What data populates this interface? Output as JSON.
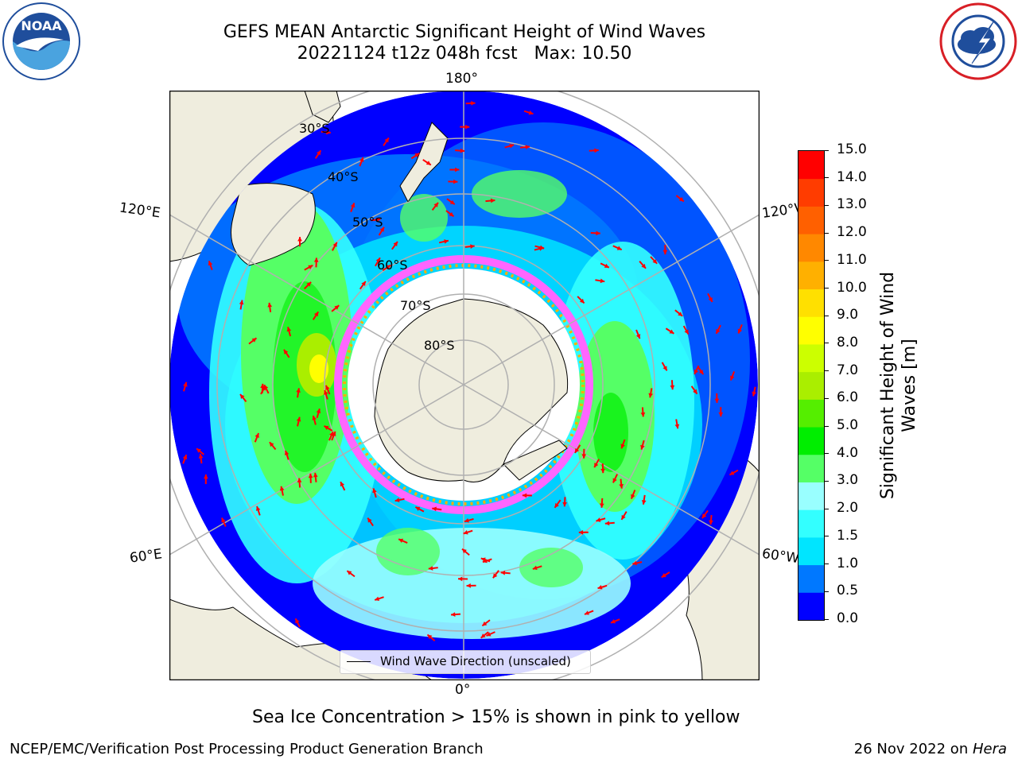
{
  "header": {
    "title_line1": "GEFS MEAN Antarctic Significant Height of Wind Waves",
    "title_line2": "20221124 t12z 048h fcst   Max: 10.50"
  },
  "logos": {
    "noaa": {
      "text": "NOAA",
      "ring_text": "NATIONAL OCEANIC AND ATMOSPHERIC ADMINISTRATION · U.S. DEPARTMENT OF COMMERCE",
      "color": "#1f4e9c"
    },
    "nws": {
      "ring_text": "NATIONAL WEATHER SERVICE",
      "color": "#d81f26"
    }
  },
  "map": {
    "projection": "south-polar-stereographic",
    "longitude_labels": {
      "top": "180°",
      "left_upper": "120°E",
      "right_upper": "120°W",
      "left_lower": "60°E",
      "right_lower": "60°W",
      "bottom": "0°"
    },
    "latitude_labels": [
      "30°S",
      "40°S",
      "50°S",
      "60°S",
      "70°S",
      "80°S"
    ],
    "colors": {
      "land": "#efedde",
      "ocean_nodata": "#ffffff",
      "graticule": "#b0b0b0",
      "arrow": "#ff0000"
    },
    "legend": {
      "label": "Wind Wave Direction (unscaled)"
    }
  },
  "colorbar": {
    "title_line1": "Significant Height of Wind",
    "title_line2": "Waves [m]",
    "ticks": [
      "15.0",
      "14.0",
      "13.0",
      "12.0",
      "11.0",
      "10.0",
      "9.0",
      "8.0",
      "7.0",
      "6.0",
      "5.0",
      "4.0",
      "3.0",
      "2.0",
      "1.5",
      "1.0",
      "0.5",
      "0.0"
    ],
    "colors": [
      "#0000ff",
      "#0078ff",
      "#00e5ff",
      "#33ffff",
      "#99ffff",
      "#55ff66",
      "#00ee00",
      "#55ee00",
      "#aaee00",
      "#ccff00",
      "#ffff00",
      "#ffe000",
      "#ffb000",
      "#ff8800",
      "#ff6000",
      "#ff3c00",
      "#ff0000"
    ]
  },
  "footer": {
    "sea_ice_note": "Sea Ice Concentration > 15% is shown in pink to yellow",
    "credit": "NCEP/EMC/Verification Post Processing Product Generation Branch",
    "date": "26 Nov 2022 on ",
    "machine": "Hera"
  }
}
